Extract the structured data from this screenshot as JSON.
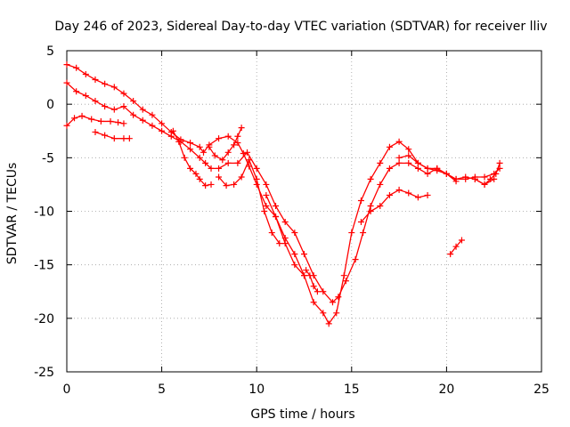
{
  "chart_data": {
    "type": "scatter",
    "title": "Day 246 of 2023, Sidereal Day-to-day VTEC variation (SDTVAR) for receiver lliv",
    "xlabel": "GPS time / hours",
    "ylabel": "SDTVAR / TECUs",
    "xlim": [
      0,
      25
    ],
    "ylim": [
      -25,
      5
    ],
    "xticks": [
      "0",
      "5",
      "10",
      "15",
      "20",
      "25"
    ],
    "yticks": [
      "5",
      "0",
      "-5",
      "-10",
      "-15",
      "-20",
      "-25"
    ],
    "grid": true,
    "marker": "+",
    "color": "#ff0000",
    "series": [
      {
        "x": [
          0.0,
          0.5,
          1.0,
          1.5,
          2.0,
          2.5,
          3.0,
          3.5,
          4.0,
          4.5,
          5.0,
          5.5,
          6.0,
          6.5,
          7.0,
          7.2,
          7.5,
          8.0,
          8.5,
          9.0,
          9.3,
          9.6,
          10.0,
          10.5,
          11.0,
          11.5,
          12.0,
          12.5,
          13.0,
          13.5,
          13.8,
          14.2,
          14.6,
          15.0,
          15.5,
          16.0,
          16.5,
          17.0,
          17.5,
          18.0,
          18.5,
          19.0,
          19.5,
          20.0,
          20.5,
          21.0,
          21.5,
          22.0,
          22.5,
          22.8
        ],
        "y": [
          3.7,
          3.4,
          2.8,
          2.3,
          1.9,
          1.6,
          1.0,
          0.3,
          -0.5,
          -1.0,
          -1.8,
          -2.6,
          -3.3,
          -3.6,
          -4.0,
          -4.5,
          -3.8,
          -3.2,
          -3.0,
          -3.6,
          -4.6,
          -5.8,
          -7.5,
          -9.5,
          -10.5,
          -12.5,
          -14.0,
          -16.0,
          -18.5,
          -19.5,
          -20.5,
          -19.5,
          -16.0,
          -12.0,
          -9.0,
          -7.0,
          -5.5,
          -4.0,
          -3.5,
          -4.2,
          -5.5,
          -6.0,
          -6.2,
          -6.5,
          -7.0,
          -7.0,
          -6.8,
          -6.8,
          -6.5,
          -6.0
        ]
      },
      {
        "x": [
          0.0,
          0.5,
          1.0,
          1.5,
          2.0,
          2.5,
          3.0,
          3.5,
          4.0,
          4.5,
          5.0,
          5.5,
          6.0,
          6.5,
          7.0,
          7.3,
          7.6,
          8.0,
          8.5,
          9.0,
          9.5,
          10.0,
          10.5,
          11.0,
          11.5,
          12.0,
          12.5,
          13.0,
          13.5,
          14.0,
          14.3,
          14.7,
          15.2,
          15.6,
          16.0,
          16.5,
          17.0,
          17.5,
          18.0,
          18.5,
          19.0,
          19.5,
          20.0,
          20.5,
          21.0,
          21.5,
          22.0,
          22.5
        ],
        "y": [
          2.0,
          1.2,
          0.8,
          0.3,
          -0.2,
          -0.5,
          -0.2,
          -1.0,
          -1.5,
          -2.0,
          -2.5,
          -3.0,
          -3.5,
          -4.2,
          -5.0,
          -5.5,
          -6.0,
          -6.0,
          -5.5,
          -5.5,
          -4.5,
          -6.0,
          -7.5,
          -9.5,
          -11.0,
          -12.0,
          -14.0,
          -16.0,
          -17.5,
          -18.5,
          -18.0,
          -16.5,
          -14.5,
          -12.0,
          -9.5,
          -7.5,
          -6.0,
          -5.5,
          -5.5,
          -6.0,
          -6.5,
          -6.0,
          -6.5,
          -7.0,
          -6.8,
          -7.0,
          -7.5,
          -7.0
        ]
      },
      {
        "x": [
          0.0,
          0.4,
          0.8,
          1.3,
          1.8,
          2.3,
          2.7,
          3.0
        ],
        "y": [
          -2.0,
          -1.3,
          -1.1,
          -1.4,
          -1.6,
          -1.6,
          -1.7,
          -1.8
        ]
      },
      {
        "x": [
          1.5,
          2.0,
          2.5,
          3.0,
          3.3
        ],
        "y": [
          -2.6,
          -2.9,
          -3.2,
          -3.2,
          -3.2
        ]
      },
      {
        "x": [
          5.6,
          5.9,
          6.2,
          6.5,
          6.8,
          7.0,
          7.3,
          7.6
        ],
        "y": [
          -2.5,
          -3.5,
          -5.0,
          -6.0,
          -6.5,
          -7.0,
          -7.6,
          -7.5
        ]
      },
      {
        "x": [
          7.5,
          7.8,
          8.2,
          8.5,
          8.8,
          9.0,
          9.2
        ],
        "y": [
          -4.0,
          -4.8,
          -5.2,
          -4.5,
          -3.8,
          -3.0,
          -2.2
        ]
      },
      {
        "x": [
          8.0,
          8.4,
          8.8,
          9.2,
          9.6,
          10.0,
          10.4,
          10.8,
          11.2
        ],
        "y": [
          -6.8,
          -7.6,
          -7.5,
          -6.8,
          -5.2,
          -7.0,
          -10.0,
          -12.0,
          -13.0
        ]
      },
      {
        "x": [
          10.5,
          11.0,
          11.5,
          12.0,
          12.5
        ],
        "y": [
          -8.5,
          -10.5,
          -13.0,
          -15.0,
          -16.0
        ]
      },
      {
        "x": [
          12.6,
          12.8,
          13.0,
          13.2
        ],
        "y": [
          -15.5,
          -16.0,
          -17.0,
          -17.5
        ]
      },
      {
        "x": [
          15.5,
          16.0,
          16.5,
          17.0,
          17.5,
          18.0,
          18.5,
          19.0
        ],
        "y": [
          -11.0,
          -10.0,
          -9.5,
          -8.5,
          -8.0,
          -8.3,
          -8.7,
          -8.5
        ]
      },
      {
        "x": [
          17.5,
          18.0,
          18.5,
          19.0,
          19.5,
          20.0,
          20.5
        ],
        "y": [
          -5.0,
          -4.8,
          -5.5,
          -6.0,
          -6.0,
          -6.5,
          -7.2
        ]
      },
      {
        "x": [
          20.2,
          20.5,
          20.8
        ],
        "y": [
          -14.0,
          -13.3,
          -12.7
        ]
      },
      {
        "x": [
          21.5,
          22.0,
          22.3,
          22.6,
          22.8
        ],
        "y": [
          -7.0,
          -7.5,
          -7.0,
          -6.5,
          -5.5
        ]
      }
    ]
  }
}
